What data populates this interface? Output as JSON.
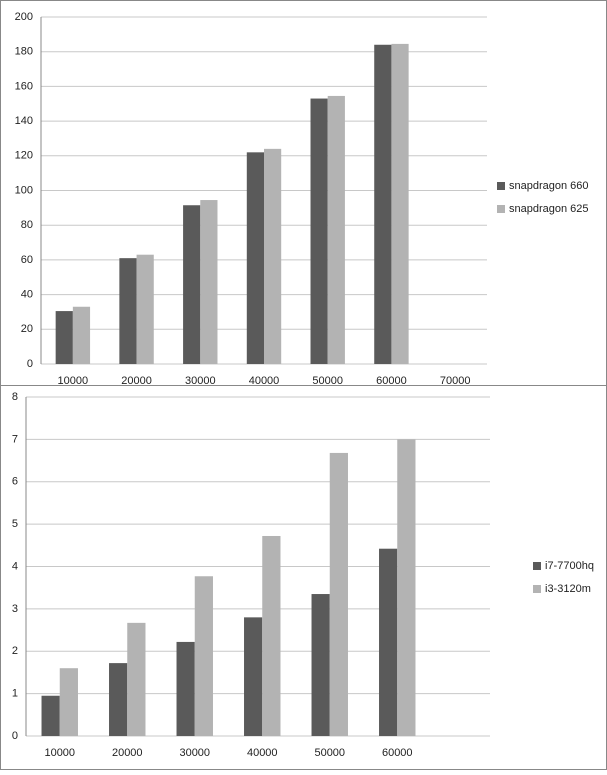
{
  "chart_data": [
    {
      "type": "bar",
      "categories": [
        "10000",
        "20000",
        "30000",
        "40000",
        "50000",
        "60000",
        "70000"
      ],
      "series": [
        {
          "name": "snapdragon 660",
          "color": "#5a5a5a",
          "values": [
            30.5,
            61,
            91.5,
            122,
            153,
            184,
            null
          ]
        },
        {
          "name": "snapdragon 625",
          "color": "#b3b3b3",
          "values": [
            33,
            63,
            94.5,
            124,
            154.5,
            184.5,
            null
          ]
        }
      ],
      "ylim": [
        0,
        200
      ],
      "yticks": [
        0,
        20,
        40,
        60,
        80,
        100,
        120,
        140,
        160,
        180,
        200
      ],
      "grid": true,
      "legend": "right"
    },
    {
      "type": "bar",
      "categories": [
        "10000",
        "20000",
        "30000",
        "40000",
        "50000",
        "60000"
      ],
      "series": [
        {
          "name": "i7-7700hq",
          "color": "#5a5a5a",
          "values": [
            0.95,
            1.72,
            2.22,
            2.8,
            3.35,
            4.42
          ]
        },
        {
          "name": "i3-3120m",
          "color": "#b3b3b3",
          "values": [
            1.6,
            2.67,
            3.77,
            4.72,
            6.68,
            7.0
          ]
        }
      ],
      "ylim": [
        0,
        8
      ],
      "yticks": [
        0,
        1,
        2,
        3,
        4,
        5,
        6,
        7,
        8
      ],
      "grid": true,
      "legend": "right"
    }
  ]
}
